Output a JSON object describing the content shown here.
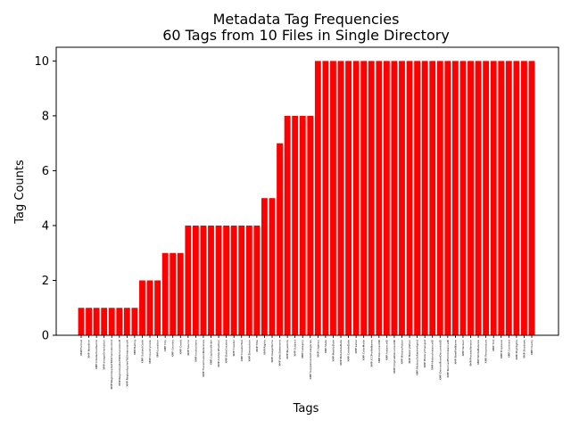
{
  "chart_data": {
    "type": "bar",
    "title": "Metadata Tag Frequencies",
    "subtitle": "60 Tags from 10 Files in Single Directory",
    "xlabel": "Tags",
    "ylabel": "Tag Counts",
    "ylim": [
      0,
      10.5
    ],
    "yticks": [
      0,
      2,
      4,
      6,
      8,
      10
    ],
    "grid": false,
    "bar_color": "#ff0000",
    "categories": [
      "XMP:Format",
      "XMP:Headline",
      "XMP:IntellectualGenre",
      "XMP:ImageOrientation",
      "XMP:RegionAppliedToDimensionsUnit",
      "XMP:RegionAppliedToDimensionsH",
      "XMP:RegionAppliedToDimensionsW",
      "XMP:Rating",
      "XMP:SubjectCode",
      "XMP:CountryCode",
      "XMP:Location",
      "XMP:City",
      "XMP:Country",
      "XMP:Credit",
      "XMP:Source",
      "XMP:Instructions",
      "XMP:TransmissionReference",
      "XMP:CaptionWriter",
      "XMP:AuthorsPosition",
      "XMP:DateCreated",
      "XMP:Creator",
      "XMP:CreatorTool",
      "XMP:Description",
      "XMP:Title",
      "XMP:Rights",
      "XMP:UsageTerms",
      "XMP:WebStatement",
      "XMP:Keywords",
      "XMP:Subject",
      "XMP:Category",
      "XMP:SupplementalCategories",
      "XMP:Urgency",
      "XMP:State",
      "XMP:ModifyDate",
      "XMP:MetadataDate",
      "XMP:CreateDate",
      "XMP:Label",
      "XMP:ColorMode",
      "XMP:ICCProfileName",
      "XMP:DocumentID",
      "XMP:InstanceID",
      "XMP:OriginalDocumentID",
      "XMP:HistoryAction",
      "XMP:HistoryWhen",
      "XMP:HistorySoftwareAgent",
      "XMP:HistoryChanged",
      "XMP:HistoryInstanceID",
      "XMP:DerivedFromDocumentID",
      "XMP:DerivedFromInstanceID",
      "XMP:RawFileName",
      "XMP:Version",
      "XMP:ProcessVersion",
      "XMP:WhiteBalance",
      "XMP:Temperature",
      "XMP:Tint",
      "XMP:Exposure",
      "XMP:Contrast",
      "XMP:Highlights",
      "XMP:Shadows",
      "XMP:Clarity"
    ],
    "values": [
      1,
      1,
      1,
      1,
      1,
      1,
      1,
      1,
      2,
      2,
      2,
      3,
      3,
      3,
      4,
      4,
      4,
      4,
      4,
      4,
      4,
      4,
      4,
      4,
      5,
      5,
      7,
      8,
      8,
      8,
      8,
      10,
      10,
      10,
      10,
      10,
      10,
      10,
      10,
      10,
      10,
      10,
      10,
      10,
      10,
      10,
      10,
      10,
      10,
      10,
      10,
      10,
      10,
      10,
      10,
      10,
      10,
      10,
      10,
      10
    ]
  }
}
